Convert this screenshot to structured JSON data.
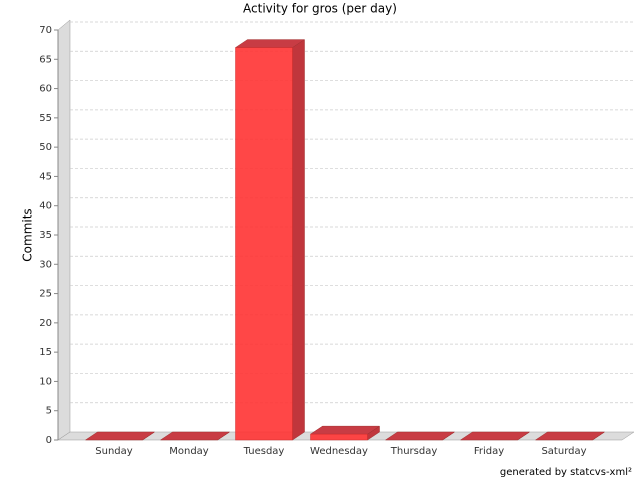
{
  "chart_data": {
    "type": "bar3d",
    "title": "Activity for gros (per day)",
    "y_label": "Commits",
    "categories": [
      "Sunday",
      "Monday",
      "Tuesday",
      "Wednesday",
      "Thursday",
      "Friday",
      "Saturday"
    ],
    "values": [
      0,
      0,
      67,
      1,
      0,
      0,
      0
    ],
    "color": "#ff3333",
    "ylim": [
      0,
      70
    ],
    "yticks": [
      0,
      5,
      10,
      15,
      20,
      25,
      30,
      35,
      40,
      45,
      50,
      55,
      60,
      65,
      70
    ],
    "grid": true
  },
  "footer": "generated by statcvs-xml²"
}
